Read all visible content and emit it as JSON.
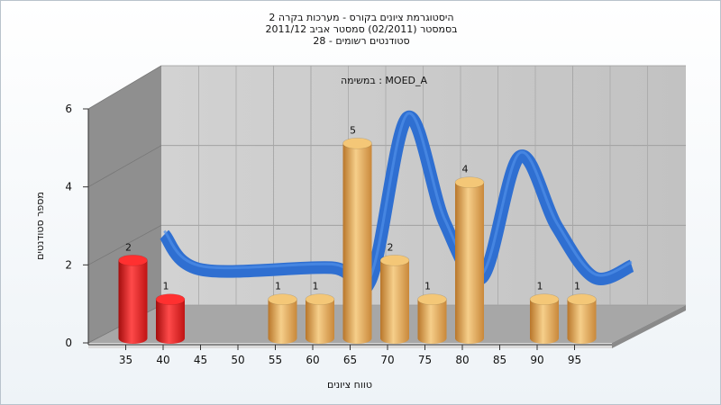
{
  "chart_data": {
    "type": "bar",
    "title_lines": [
      "היסטוגרמת ציונים בקורס - מערכות בקרה 2",
      "בסמסטר  (02/2011)  סמסטר אביב 2011/12",
      "סטודנטים רשומים - 28"
    ],
    "annotation": "במשימה : MOED_A",
    "xlabel": "טווח ציונים",
    "ylabel": "מספר סטודנטים",
    "ylim": [
      0,
      6
    ],
    "y_ticks": [
      0,
      2,
      4,
      6
    ],
    "x_ticks": [
      35,
      40,
      45,
      50,
      55,
      60,
      65,
      70,
      75,
      80,
      85,
      90,
      95
    ],
    "bars": [
      {
        "x": 35,
        "value": 2,
        "color": "red"
      },
      {
        "x": 40,
        "value": 1,
        "color": "red"
      },
      {
        "x": 55,
        "value": 1,
        "color": "orange"
      },
      {
        "x": 60,
        "value": 1,
        "color": "orange"
      },
      {
        "x": 65,
        "value": 5,
        "color": "orange"
      },
      {
        "x": 70,
        "value": 2,
        "color": "orange"
      },
      {
        "x": 75,
        "value": 1,
        "color": "orange"
      },
      {
        "x": 80,
        "value": 4,
        "color": "orange"
      },
      {
        "x": 90,
        "value": 1,
        "color": "orange"
      },
      {
        "x": 95,
        "value": 1,
        "color": "orange"
      }
    ],
    "curve": [
      {
        "x": 37.5,
        "y": 2.5
      },
      {
        "x": 42.5,
        "y": 1.6
      },
      {
        "x": 60,
        "y": 1.65
      },
      {
        "x": 65,
        "y": 1.3
      },
      {
        "x": 70,
        "y": 5.5
      },
      {
        "x": 75,
        "y": 2.8
      },
      {
        "x": 80,
        "y": 1.4
      },
      {
        "x": 85,
        "y": 4.5
      },
      {
        "x": 90,
        "y": 2.7
      },
      {
        "x": 95,
        "y": 1.4
      },
      {
        "x": 100,
        "y": 1.7
      }
    ],
    "colors": {
      "bar_red": "#e01f1f",
      "bar_orange": "#e8a94c",
      "curve_blue": "#2f6fd1",
      "curve_gray": "#5e5e5e",
      "wall": "#bdbdbd",
      "floor": "#a4a4a4"
    },
    "grid": true
  }
}
